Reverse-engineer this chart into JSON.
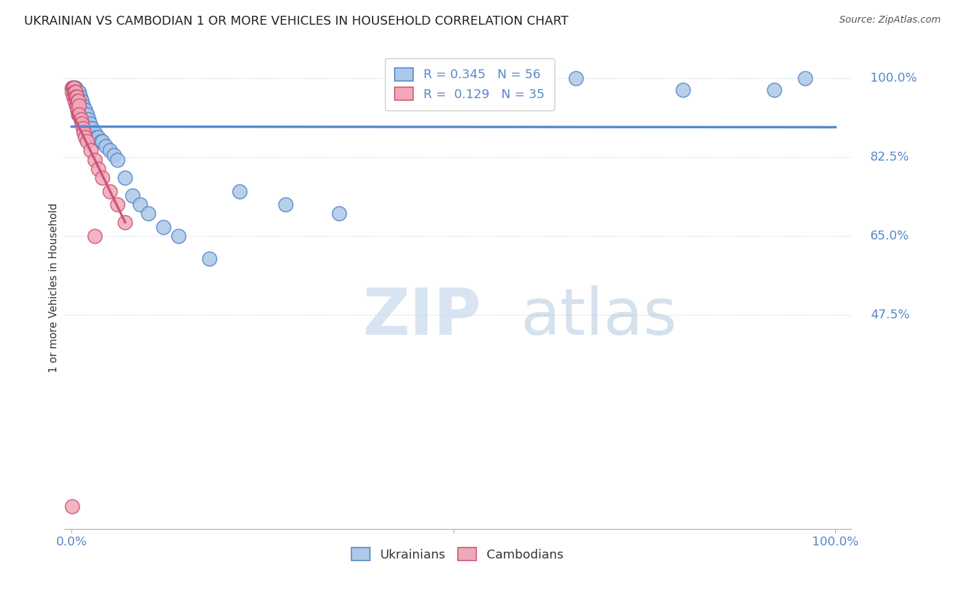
{
  "title": "UKRAINIAN VS CAMBODIAN 1 OR MORE VEHICLES IN HOUSEHOLD CORRELATION CHART",
  "source": "Source: ZipAtlas.com",
  "ylabel": "1 or more Vehicles in Household",
  "blue_color": "#adc8e8",
  "pink_color": "#f0a8b8",
  "blue_line_color": "#5588cc",
  "pink_line_color": "#cc5577",
  "R_blue": 0.345,
  "N_blue": 56,
  "R_pink": 0.129,
  "N_pink": 35,
  "ytick_labels": [
    "100.0%",
    "82.5%",
    "65.0%",
    "47.5%"
  ],
  "ytick_values": [
    1.0,
    0.825,
    0.65,
    0.475
  ],
  "legend_labels": [
    "Ukrainians",
    "Cambodians"
  ],
  "ukrainian_x": [
    0.001,
    0.002,
    0.003,
    0.003,
    0.004,
    0.004,
    0.005,
    0.005,
    0.006,
    0.006,
    0.007,
    0.007,
    0.008,
    0.008,
    0.009,
    0.009,
    0.01,
    0.01,
    0.011,
    0.011,
    0.012,
    0.013,
    0.014,
    0.015,
    0.016,
    0.017,
    0.018,
    0.019,
    0.02,
    0.022,
    0.024,
    0.025,
    0.027,
    0.03,
    0.032,
    0.035,
    0.038,
    0.04,
    0.045,
    0.05,
    0.055,
    0.06,
    0.07,
    0.08,
    0.09,
    0.1,
    0.12,
    0.14,
    0.18,
    0.22,
    0.28,
    0.35,
    0.66,
    0.8,
    0.92,
    0.96
  ],
  "ukrainian_y": [
    0.98,
    0.97,
    0.98,
    0.97,
    0.98,
    0.97,
    0.98,
    0.97,
    0.97,
    0.96,
    0.97,
    0.96,
    0.97,
    0.96,
    0.97,
    0.96,
    0.97,
    0.95,
    0.96,
    0.95,
    0.95,
    0.95,
    0.94,
    0.94,
    0.93,
    0.93,
    0.93,
    0.92,
    0.92,
    0.91,
    0.9,
    0.89,
    0.89,
    0.88,
    0.87,
    0.87,
    0.86,
    0.86,
    0.85,
    0.84,
    0.83,
    0.82,
    0.78,
    0.74,
    0.72,
    0.7,
    0.67,
    0.65,
    0.6,
    0.75,
    0.72,
    0.7,
    1.0,
    0.975,
    0.975,
    1.0
  ],
  "cambodian_x": [
    0.001,
    0.001,
    0.002,
    0.002,
    0.003,
    0.003,
    0.004,
    0.004,
    0.005,
    0.005,
    0.006,
    0.006,
    0.007,
    0.007,
    0.008,
    0.008,
    0.009,
    0.009,
    0.01,
    0.01,
    0.012,
    0.013,
    0.015,
    0.016,
    0.018,
    0.02,
    0.025,
    0.03,
    0.035,
    0.04,
    0.05,
    0.06,
    0.07,
    0.001,
    0.03
  ],
  "cambodian_y": [
    0.98,
    0.97,
    0.98,
    0.96,
    0.98,
    0.97,
    0.97,
    0.95,
    0.97,
    0.96,
    0.96,
    0.94,
    0.96,
    0.94,
    0.95,
    0.93,
    0.95,
    0.92,
    0.94,
    0.92,
    0.91,
    0.9,
    0.89,
    0.88,
    0.87,
    0.86,
    0.84,
    0.82,
    0.8,
    0.78,
    0.75,
    0.72,
    0.68,
    0.05,
    0.65
  ]
}
